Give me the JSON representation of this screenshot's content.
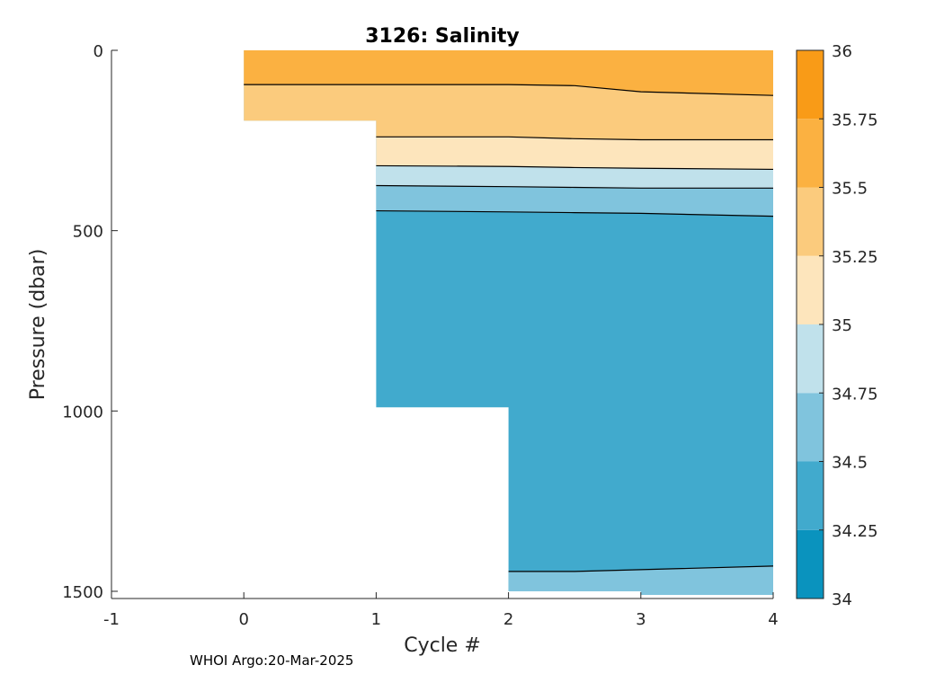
{
  "chart_data": {
    "type": "contour",
    "title": "3126:  Salinity",
    "xlabel": "Cycle #",
    "ylabel": "Pressure (dbar)",
    "xlim": [
      -1,
      4
    ],
    "ylim": [
      1520,
      0
    ],
    "x_ticks": [
      "-1",
      "0",
      "1",
      "2",
      "3",
      "4"
    ],
    "y_ticks": [
      "0",
      "500",
      "1000",
      "1500"
    ],
    "colorbar": {
      "ticks": [
        "34",
        "34.25",
        "34.5",
        "34.75",
        "35",
        "35.25",
        "35.5",
        "35.75",
        "36"
      ],
      "levels": [
        34,
        34.25,
        34.5,
        34.75,
        35,
        35.25,
        35.5,
        35.75,
        36
      ],
      "colors": [
        "#0a93be",
        "#41aacd",
        "#80c4dd",
        "#c0e1eb",
        "#fde5bc",
        "#fbcb7d",
        "#fbb141",
        "#f99b17"
      ]
    },
    "profiles": [
      {
        "cycle": 0,
        "max_pressure": 195
      },
      {
        "cycle": 1,
        "max_pressure": 990
      },
      {
        "cycle": 2,
        "max_pressure": 1500
      },
      {
        "cycle": 3,
        "max_pressure": 1510
      },
      {
        "cycle": 4,
        "max_pressure": 1520
      }
    ],
    "isohaline_depths": {
      "cycles": [
        0,
        1,
        2,
        2.5,
        3,
        4
      ],
      "contours": [
        {
          "range": [
            35.5,
            35.75
          ],
          "depth": [
            95,
            95,
            95,
            98,
            115,
            125
          ]
        },
        {
          "range": [
            35.25,
            35.5
          ],
          "depth": [
            null,
            240,
            240,
            245,
            248,
            248
          ]
        },
        {
          "range": [
            35,
            35.25
          ],
          "depth": [
            null,
            320,
            322,
            325,
            327,
            330
          ]
        },
        {
          "range": [
            34.75,
            35
          ],
          "depth": [
            null,
            375,
            378,
            380,
            382,
            382
          ]
        },
        {
          "range": [
            34.5,
            34.75
          ],
          "depth": [
            null,
            445,
            448,
            450,
            452,
            460
          ]
        },
        {
          "range": [
            34.25,
            34.5
          ],
          "depth": [
            null,
            null,
            1445,
            1445,
            1440,
            1430
          ]
        }
      ]
    }
  },
  "footer": "WHOI Argo:20-Mar-2025"
}
